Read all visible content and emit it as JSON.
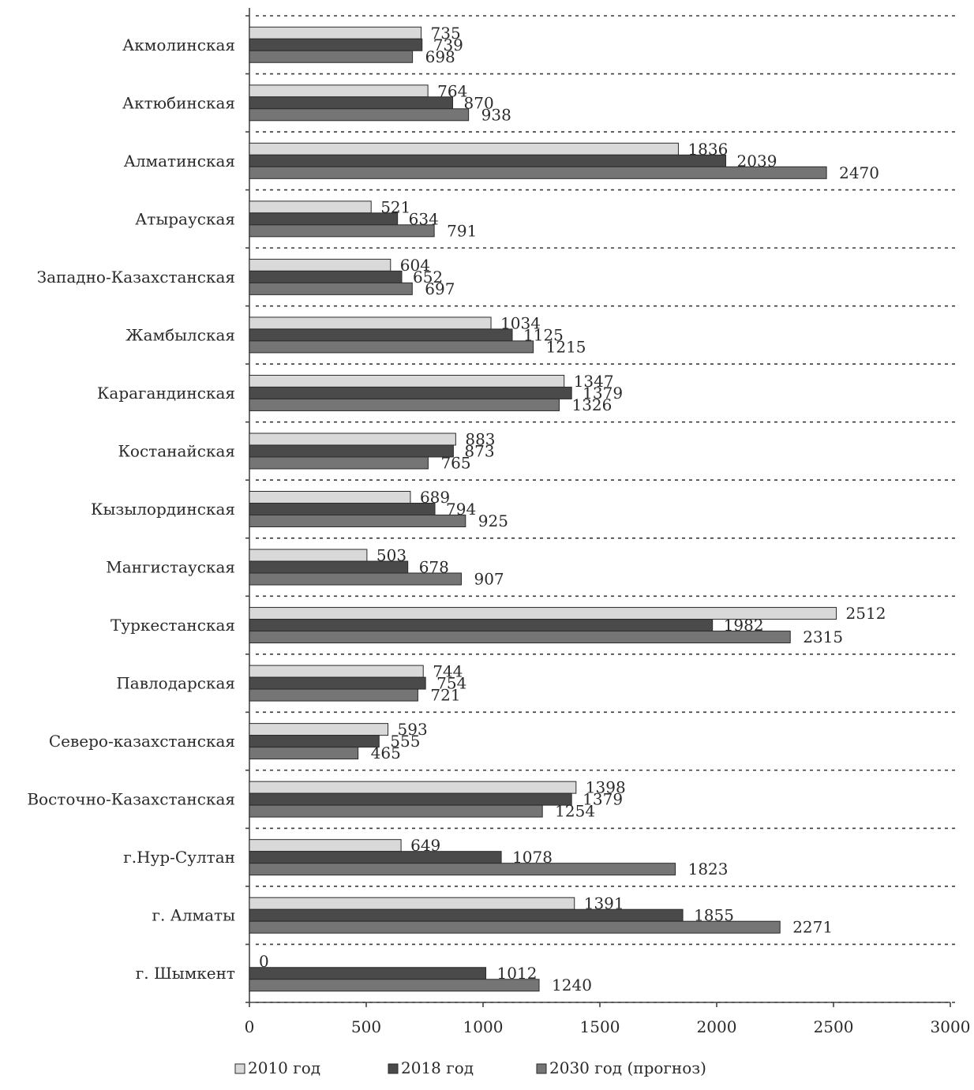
{
  "chart_data": {
    "type": "bar",
    "orientation": "horizontal",
    "categories": [
      "Акмолинская",
      "Актюбинская",
      "Алматинская",
      "Атырауская",
      "Западно-Казахстанская",
      "Жамбылская",
      "Карагандинская",
      "Костанайская",
      "Кызылординская",
      "Мангистауская",
      "Туркестанская",
      "Павлодарская",
      "Северо-казахстанская",
      "Восточно-Казахстанская",
      "г.Нур-Султан",
      "г. Алматы",
      "г. Шымкент"
    ],
    "series": [
      {
        "name": "2010 год",
        "values": [
          735,
          764,
          1836,
          521,
          604,
          1034,
          1347,
          883,
          689,
          503,
          2512,
          744,
          593,
          1398,
          649,
          1391,
          0
        ]
      },
      {
        "name": "2018 год",
        "values": [
          739,
          870,
          2039,
          634,
          652,
          1125,
          1379,
          873,
          794,
          678,
          1982,
          754,
          555,
          1379,
          1078,
          1855,
          1012
        ]
      },
      {
        "name": "2030 год (прогноз)",
        "values": [
          698,
          938,
          2470,
          791,
          697,
          1215,
          1326,
          765,
          925,
          907,
          2315,
          721,
          465,
          1254,
          1823,
          2271,
          1240
        ]
      }
    ],
    "x_ticks": [
      "0",
      "500",
      "1000",
      "1500",
      "2000",
      "2500",
      "3000"
    ],
    "xlim": [
      0,
      3000
    ],
    "legend_position": "bottom",
    "colors": {
      "2010": "#d9d9d9",
      "2018": "#4a4a4a",
      "2030": "#757575"
    }
  }
}
